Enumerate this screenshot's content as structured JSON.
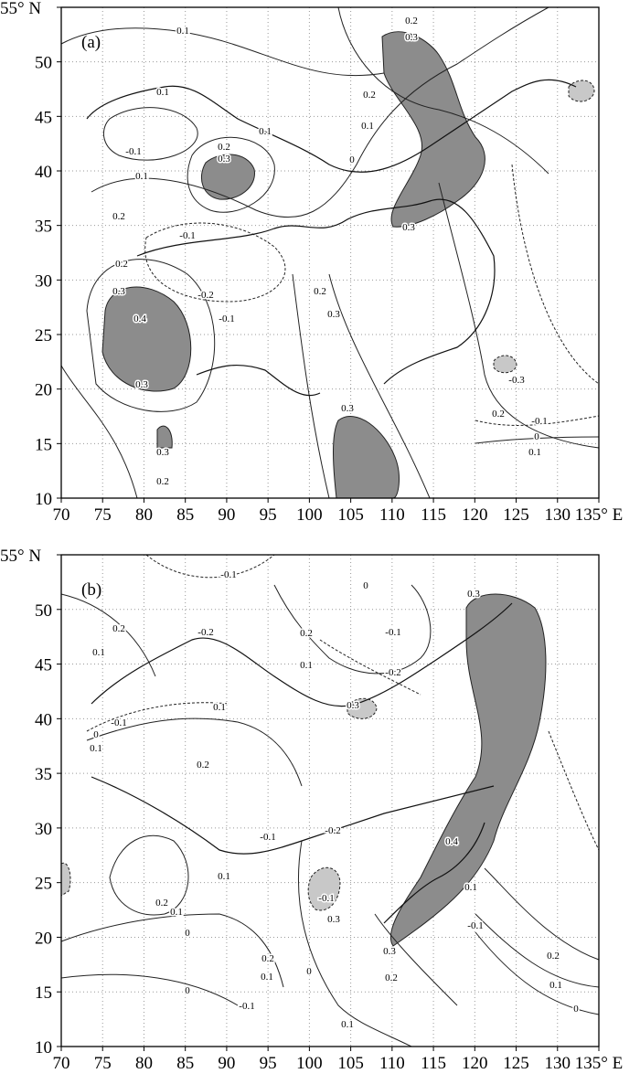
{
  "panels": [
    {
      "label": "(a)",
      "lon_range": [
        70,
        135
      ],
      "lat_range": [
        10,
        55
      ],
      "lon_ticks": [
        70,
        75,
        80,
        85,
        90,
        95,
        100,
        105,
        110,
        115,
        120,
        125,
        130,
        {
          "value": 135,
          "label": "135° E"
        }
      ],
      "lat_ticks": [
        10,
        15,
        20,
        25,
        30,
        35,
        40,
        45,
        50,
        {
          "value": 55,
          "label": "55° N"
        }
      ],
      "contour_labels": [
        "0.1",
        "0.2",
        "0.3",
        "0.1",
        "-0.1",
        "0.2",
        "0.3",
        "0.1",
        "0.1",
        "0",
        "0.2",
        "0.1",
        "0.2",
        "-0.1",
        "0.2",
        "-0.2",
        "-0.1",
        "0.3",
        "0.4",
        "0.3",
        "0.3",
        "0.2",
        "0.3",
        "0.3",
        "0.2",
        "0.3",
        "-0.3",
        "0.2",
        "-0.1",
        "0",
        "0.1"
      ]
    },
    {
      "label": "(b)",
      "lon_range": [
        70,
        135
      ],
      "lat_range": [
        10,
        55
      ],
      "lon_ticks": [
        70,
        75,
        80,
        85,
        90,
        95,
        100,
        105,
        110,
        115,
        120,
        125,
        130,
        {
          "value": 135,
          "label": "135° E"
        }
      ],
      "lat_ticks": [
        10,
        15,
        20,
        25,
        30,
        35,
        40,
        45,
        50,
        {
          "value": 55,
          "label": "55° N"
        }
      ],
      "contour_labels": [
        "-0.1",
        "0.2",
        "0.1",
        "-0.2",
        "0",
        "0.2",
        "-0.1",
        "0.1",
        "-0.2",
        "0.3",
        "0.1",
        "-0.1",
        "0",
        "0.1",
        "0.2",
        "0.3",
        "-0.1",
        "-0.2",
        "0.4",
        "0.1",
        "0.2",
        "0.1",
        "0",
        "-0.1",
        "0.3",
        "0.1",
        "-0.1",
        "0.2",
        "0.1",
        "0",
        "0.2",
        "0.1",
        "0",
        "0.3",
        "0.2",
        "0.1",
        "0",
        "-0.1"
      ]
    }
  ]
}
